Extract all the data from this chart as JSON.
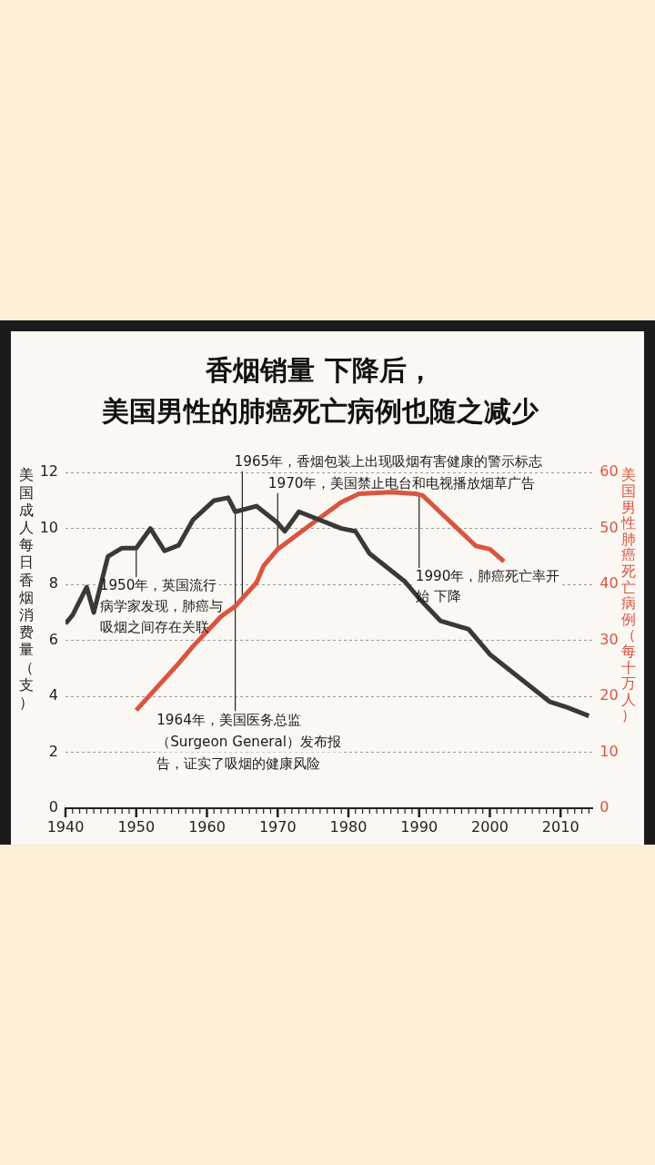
{
  "chart_data": {
    "type": "line",
    "title": "香烟销量 下降后，",
    "subtitle": "美国男性的肺癌死亡病例也随之减少",
    "ylabel": "美国成人每日香烟消费量（支）",
    "y2label": "美国男性肺癌死亡病例（每十万人）",
    "series": [
      {
        "color": "#3b3836",
        "x": [
          1940,
          1941,
          1943,
          1944,
          1946,
          1948,
          1950,
          1952,
          1954,
          1956,
          1958,
          1961,
          1963,
          1964,
          1967,
          1970,
          1971,
          1973,
          1979,
          1981,
          1983,
          1988,
          1990,
          1993,
          1997,
          2000,
          2005,
          2008.5,
          2011,
          2014
        ],
        "values": [
          6.6,
          6.9,
          7.9,
          7.0,
          9.0,
          9.3,
          9.3,
          10.0,
          9.2,
          9.4,
          10.3,
          11.0,
          11.1,
          10.6,
          10.8,
          10.2,
          9.9,
          10.6,
          10.0,
          9.9,
          9.1,
          8.1,
          7.5,
          6.7,
          6.4,
          5.5,
          4.5,
          3.8,
          3.6,
          3.3
        ]
      },
      {
        "color": "#d9553f",
        "axis": "y2",
        "x": [
          1950,
          1953,
          1956,
          1958,
          1962,
          1964,
          1967,
          1968,
          1970,
          1975,
          1979,
          1981.5,
          1986,
          1989.5,
          1990.5,
          1991.5,
          1998,
          2000,
          2002
        ],
        "values": [
          17.5,
          21.7,
          25.9,
          28.9,
          34.3,
          36.1,
          40.3,
          43.3,
          46.3,
          51.0,
          54.7,
          56.2,
          56.5,
          56.2,
          55.9,
          54.7,
          46.9,
          46.3,
          44.1
        ]
      }
    ],
    "xlim": [
      1940,
      2014.5
    ],
    "xticks": [
      1940,
      {
        "value": 1941,
        "label": null
      },
      {
        "value": 1942,
        "label": null
      },
      {
        "value": 1943,
        "label": null
      },
      {
        "value": 1944,
        "label": null
      },
      {
        "value": 1945,
        "label": null
      },
      {
        "value": 1946,
        "label": null
      },
      {
        "value": 1947,
        "label": null
      },
      {
        "value": 1948,
        "label": null
      },
      {
        "value": 1949,
        "label": null
      },
      1950,
      {
        "value": 1951,
        "label": null
      },
      {
        "value": 1952,
        "label": null
      },
      {
        "value": 1953,
        "label": null
      },
      {
        "value": 1954,
        "label": null
      },
      {
        "value": 1955,
        "label": null
      },
      {
        "value": 1956,
        "label": null
      },
      {
        "value": 1957,
        "label": null
      },
      {
        "value": 1958,
        "label": null
      },
      {
        "value": 1959,
        "label": null
      },
      1960,
      {
        "value": 1961,
        "label": null
      },
      {
        "value": 1962,
        "label": null
      },
      {
        "value": 1963,
        "label": null
      },
      {
        "value": 1964,
        "label": null
      },
      {
        "value": 1965,
        "label": null
      },
      {
        "value": 1966,
        "label": null
      },
      {
        "value": 1967,
        "label": null
      },
      {
        "value": 1968,
        "label": null
      },
      {
        "value": 1969,
        "label": null
      },
      1970,
      {
        "value": 1971,
        "label": null
      },
      {
        "value": 1972,
        "label": null
      },
      {
        "value": 1973,
        "label": null
      },
      {
        "value": 1974,
        "label": null
      },
      {
        "value": 1975,
        "label": null
      },
      {
        "value": 1976,
        "label": null
      },
      {
        "value": 1977,
        "label": null
      },
      {
        "value": 1978,
        "label": null
      },
      {
        "value": 1979,
        "label": null
      },
      1980,
      {
        "value": 1981,
        "label": null
      },
      {
        "value": 1982,
        "label": null
      },
      {
        "value": 1983,
        "label": null
      },
      {
        "value": 1984,
        "label": null
      },
      {
        "value": 1985,
        "label": null
      },
      {
        "value": 1986,
        "label": null
      },
      {
        "value": 1987,
        "label": null
      },
      {
        "value": 1988,
        "label": null
      },
      {
        "value": 1989,
        "label": null
      },
      1990,
      {
        "value": 1991,
        "label": null
      },
      {
        "value": 1992,
        "label": null
      },
      {
        "value": 1993,
        "label": null
      },
      {
        "value": 1994,
        "label": null
      },
      {
        "value": 1995,
        "label": null
      },
      {
        "value": 1996,
        "label": null
      },
      {
        "value": 1997,
        "label": null
      },
      {
        "value": 1998,
        "label": null
      },
      {
        "value": 1999,
        "label": null
      },
      2000,
      {
        "value": 2001,
        "label": null
      },
      {
        "value": 2002,
        "label": null
      },
      {
        "value": 2003,
        "label": null
      },
      {
        "value": 2004,
        "label": null
      },
      {
        "value": 2005,
        "label": null
      },
      {
        "value": 2006,
        "label": null
      },
      {
        "value": 2007,
        "label": null
      },
      {
        "value": 2008,
        "label": null
      },
      {
        "value": 2009,
        "label": null
      },
      2010,
      {
        "value": 2011,
        "label": null
      },
      {
        "value": 2012,
        "label": null
      },
      {
        "value": 2013,
        "label": null
      },
      {
        "value": 2014,
        "label": null
      }
    ],
    "ylim": [
      0,
      12
    ],
    "yticks": [
      0,
      2,
      4,
      6,
      8,
      10,
      12
    ],
    "y2lim": [
      0,
      60
    ],
    "y2ticks": [
      0,
      10,
      20,
      30,
      40,
      50,
      60
    ],
    "grid": "y",
    "marker": "none",
    "line_style": "solid",
    "annotations": [
      {
        "text": "1950年，英国流行病学家发现，肺癌与吸烟之间存在关联",
        "x": 1950,
        "y": 9.3
      },
      {
        "text": "1964年，美国医务总监（Surgeon General）发布报告，证实了吸烟的健康风险",
        "x": 1964,
        "y": 10.6
      },
      {
        "text": "1965年，香烟包装上出现吸烟有害健康的警示标志",
        "x": 1965,
        "y": 7.4
      },
      {
        "text": "1970年，美国禁止电台和电视播放烟草广告",
        "x": 1970,
        "y": 9.3
      },
      {
        "text": "1990年，肺癌死亡率开始 下降",
        "x": 1990,
        "y": 11.2
      }
    ]
  }
}
